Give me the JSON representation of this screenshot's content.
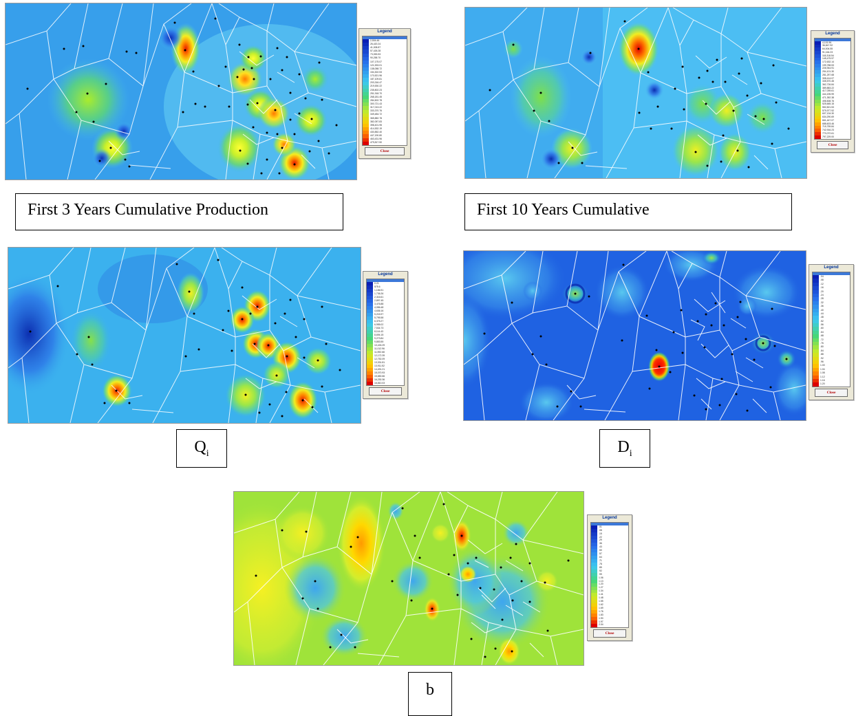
{
  "panels": [
    {
      "id": "cum3",
      "caption": "First 3 Years Cumulative Production",
      "caption_sub": "",
      "background": "#45b9f1",
      "legend": {
        "title": "Legend",
        "close": "Close",
        "values": [
          "2,504.46",
          "26,420.24",
          "41,008.87",
          "57,426.28",
          "73,053.53",
          "90,258.70",
          "107,175.07",
          "121,533.01",
          "138,058.72",
          "154,302.53",
          "170,521.96",
          "187,109.81",
          "203,316.47",
          "219,530.22",
          "235,802.23",
          "251,918.70",
          "268,181.45",
          "284,502.78",
          "300,721.43",
          "317,013.22",
          "333,370.76",
          "349,484.72",
          "365,882.78",
          "382,057.83",
          "398,401.95",
          "414,532.19",
          "430,852.40",
          "447,190.80",
          "463,431.96",
          "479,817.50"
        ]
      },
      "spots": [
        {
          "c": "#ffd400",
          "v": 1.0
        },
        {
          "c": "#e84000",
          "v": 1.0
        },
        {
          "c": "#66dd33",
          "v": 0.6
        },
        {
          "c": "#ccee22",
          "v": 0.7
        },
        {
          "c": "#ffcc00",
          "v": 0.8
        },
        {
          "c": "#aaee22",
          "v": 0.6
        },
        {
          "c": "#ff8800",
          "v": 0.9
        },
        {
          "c": "#ddee11",
          "v": 0.8
        },
        {
          "c": "#88dd44",
          "v": 0.6
        },
        {
          "c": "#1447d6",
          "v": 0.5
        },
        {
          "c": "#1f5fe0",
          "v": 0.5
        },
        {
          "c": "#ffd000",
          "v": 0.9
        },
        {
          "c": "#ff9a00",
          "v": 0.9
        },
        {
          "c": "#66d844",
          "v": 0.5
        },
        {
          "c": "#e03a10",
          "v": 1.0
        },
        {
          "c": "#ffcc00",
          "v": 0.8
        },
        {
          "c": "#bbe822",
          "v": 0.6
        },
        {
          "c": "#2a6be6",
          "v": 0.5
        },
        {
          "c": "#5fd450",
          "v": 0.6
        },
        {
          "c": "#ffb000",
          "v": 0.8
        }
      ]
    },
    {
      "id": "cum10",
      "caption": "First 10 Years Cumulative",
      "caption_sub": "",
      "background": "#4cbef3",
      "legend": {
        "title": "Legend",
        "close": "Close",
        "values": [
          "4,101.96",
          "36,847.92",
          "64,004.55",
          "91,164.23",
          "118,318.54",
          "145,475.97",
          "172,632.14",
          "199,788.53",
          "226,944.91",
          "254,101.30",
          "281,257.68",
          "308,414.07",
          "335,570.45",
          "362,726.84",
          "389,883.22",
          "417,039.61",
          "444,195.99",
          "471,352.38",
          "498,508.76",
          "525,665.15",
          "552,821.53",
          "579,977.92",
          "607,134.30",
          "634,290.69",
          "661,447.07",
          "688,603.46",
          "715,759.84",
          "742,916.23",
          "770,072.61",
          "797,229.00"
        ]
      },
      "spots": []
    },
    {
      "id": "qi",
      "caption": "Q",
      "caption_sub": "i",
      "background": "#3bb1ee",
      "legend": {
        "title": "Legend",
        "close": "Close",
        "values": [
          "0.21",
          "575.6",
          "1,156.91",
          "1,736.26",
          "2,316.61",
          "2,897.45",
          "3,476.88",
          "4,056.48",
          "4,636.16",
          "5,215.97",
          "5,795.58",
          "6,375.27",
          "6,955.02",
          "7,534.73",
          "8,114.43",
          "8,694.15",
          "9,273.84",
          "9,853.55",
          "10,433.29",
          "11,012.96",
          "11,592.68",
          "12,172.39",
          "12,752.09",
          "13,331.81",
          "13,911.52",
          "14,491.21",
          "15,070.93",
          "15,650.66",
          "16,230.36",
          "16,810.03"
        ]
      },
      "spots": []
    },
    {
      "id": "di",
      "caption": "D",
      "caption_sub": "i",
      "background": "#1f62e2",
      "legend": {
        "title": "Legend",
        "close": "Close",
        "values": [
          ".04",
          ".08",
          ".12",
          ".16",
          ".20",
          ".24",
          ".28",
          ".32",
          ".36",
          ".40",
          ".44",
          ".48",
          ".52",
          ".56",
          ".60",
          ".64",
          ".68",
          ".72",
          ".76",
          ".80",
          ".84",
          ".88",
          ".92",
          ".96",
          "1.00",
          "1.04",
          "1.08",
          "1.12",
          "1.16",
          "1.20"
        ]
      },
      "spots": []
    },
    {
      "id": "b",
      "caption": "b",
      "caption_sub": "",
      "background": "#9fe33a",
      "legend": {
        "title": "Legend",
        "close": "Close",
        "values": [
          ".01",
          ".08",
          ".15",
          ".22",
          ".29",
          ".36",
          ".43",
          ".50",
          ".57",
          ".64",
          ".71",
          ".78",
          ".85",
          ".92",
          ".99",
          "1.06",
          "1.13",
          "1.20",
          "1.27",
          "1.34",
          "1.41",
          "1.48",
          "1.55",
          "1.62",
          "1.69",
          "1.76",
          "1.83",
          "1.90",
          "1.97",
          "2.04"
        ]
      },
      "spots": []
    }
  ]
}
